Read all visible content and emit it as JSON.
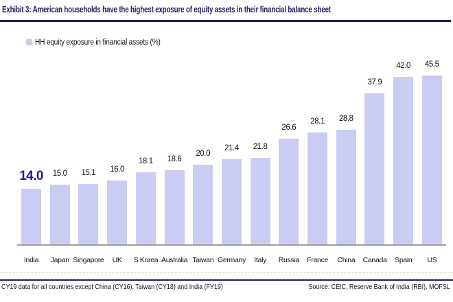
{
  "header": {
    "title": "Exhibit 3: American households have the highest exposure of equity assets in their financial balance sheet"
  },
  "legend": {
    "label": "HH equity exposure in financial assets (%)"
  },
  "chart_data": {
    "type": "bar",
    "title": "HH equity exposure in financial assets (%)",
    "categories": [
      "India",
      "Japan",
      "Singapore",
      "UK",
      "S Korea",
      "Australia",
      "Taiwan",
      "Germany",
      "Italy",
      "Russia",
      "France",
      "China",
      "Canada",
      "Spain",
      "US"
    ],
    "values": [
      14.0,
      15.0,
      15.1,
      16.0,
      18.1,
      18.6,
      20.0,
      21.4,
      21.8,
      26.6,
      28.1,
      28.8,
      37.9,
      42.0,
      45.5
    ],
    "value_label_decimals": 1,
    "highlight_category": "India",
    "xlabel": "",
    "ylabel": "",
    "ylim": [
      0,
      50
    ],
    "grid": false,
    "legend_position": "top-left",
    "bar_color": "#cbccf4",
    "highlight_label_color": "#1f1f8f"
  },
  "footer": {
    "note": "CY19 data for all countries except China (CY16), Taiwan (CY18) and India (FY19)",
    "source": "Source: CEIC, Reserve Bank of India (RBI), MOFSL"
  },
  "colors": {
    "accent_navy": "#201d5e",
    "bar_fill": "#cbccf4",
    "baseline_gray": "#9d9d9d",
    "text_black": "#121212"
  }
}
